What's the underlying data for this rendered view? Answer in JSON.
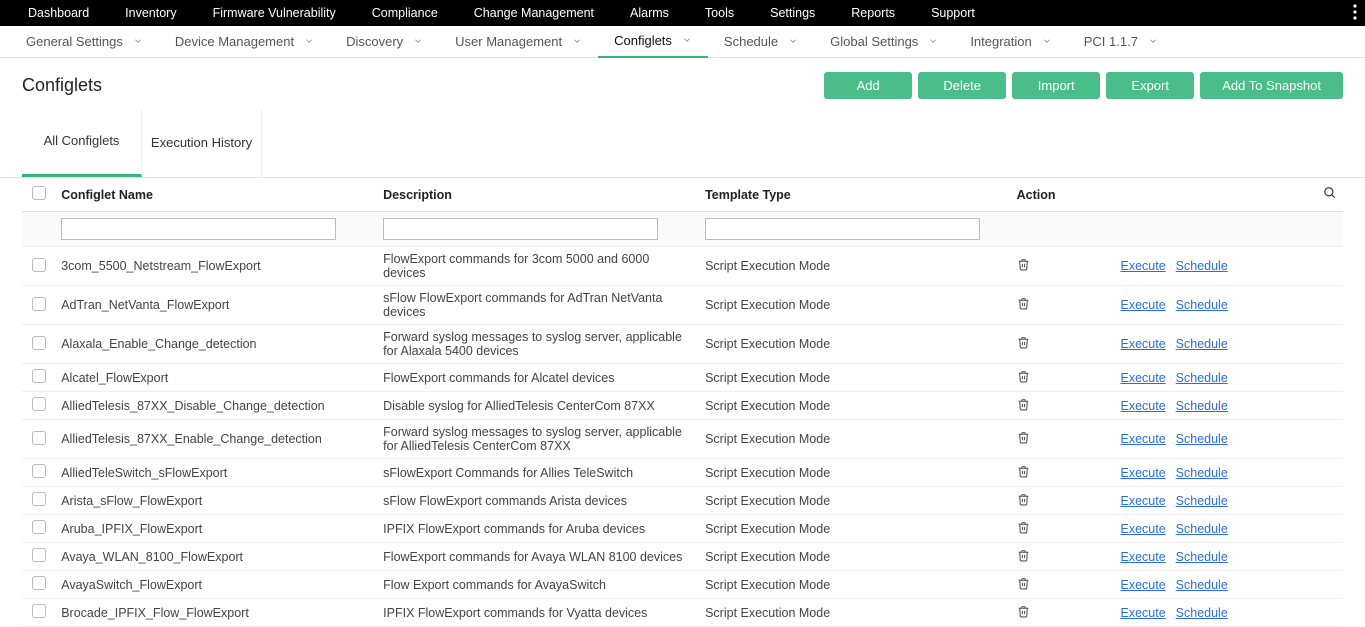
{
  "topnav": [
    "Dashboard",
    "Inventory",
    "Firmware Vulnerability",
    "Compliance",
    "Change Management",
    "Alarms",
    "Tools",
    "Settings",
    "Reports",
    "Support"
  ],
  "subnav": [
    {
      "label": "General Settings"
    },
    {
      "label": "Device Management"
    },
    {
      "label": "Discovery"
    },
    {
      "label": "User Management"
    },
    {
      "label": "Configlets",
      "active": true
    },
    {
      "label": "Schedule"
    },
    {
      "label": "Global Settings"
    },
    {
      "label": "Integration"
    },
    {
      "label": "PCI 1.1.7"
    }
  ],
  "page_title": "Configlets",
  "buttons": {
    "add": "Add",
    "delete": "Delete",
    "import": "Import",
    "export": "Export",
    "snapshot": "Add To Snapshot"
  },
  "tabs": [
    {
      "label": "All Configlets",
      "active": true
    },
    {
      "label": "Execution History",
      "active": false
    }
  ],
  "columns": {
    "name": "Configlet Name",
    "desc": "Description",
    "type": "Template Type",
    "action": "Action"
  },
  "action_links": {
    "execute": "Execute",
    "schedule": "Schedule"
  },
  "rows": [
    {
      "name": "3com_5500_Netstream_FlowExport",
      "desc": "FlowExport commands for 3com 5000 and 6000 devices",
      "type": "Script Execution Mode"
    },
    {
      "name": "AdTran_NetVanta_FlowExport",
      "desc": "sFlow FlowExport commands for AdTran NetVanta devices",
      "type": "Script Execution Mode"
    },
    {
      "name": "Alaxala_Enable_Change_detection",
      "desc": "Forward syslog messages to syslog server, applicable for Alaxala 5400 devices",
      "type": "Script Execution Mode"
    },
    {
      "name": "Alcatel_FlowExport",
      "desc": "FlowExport commands for Alcatel devices",
      "type": "Script Execution Mode"
    },
    {
      "name": "AlliedTelesis_87XX_Disable_Change_detection",
      "desc": "Disable syslog for AlliedTelesis CenterCom 87XX",
      "type": "Script Execution Mode"
    },
    {
      "name": "AlliedTelesis_87XX_Enable_Change_detection",
      "desc": "Forward syslog messages to syslog server, applicable for AlliedTelesis CenterCom 87XX",
      "type": "Script Execution Mode"
    },
    {
      "name": "AlliedTeleSwitch_sFlowExport",
      "desc": "sFlowExport Commands for Allies TeleSwitch",
      "type": "Script Execution Mode"
    },
    {
      "name": "Arista_sFlow_FlowExport",
      "desc": "sFlow FlowExport commands Arista devices",
      "type": "Script Execution Mode"
    },
    {
      "name": "Aruba_IPFIX_FlowExport",
      "desc": "IPFIX FlowExport commands for Aruba devices",
      "type": "Script Execution Mode"
    },
    {
      "name": "Avaya_WLAN_8100_FlowExport",
      "desc": "FlowExport commands for Avaya WLAN 8100 devices",
      "type": "Script Execution Mode"
    },
    {
      "name": "AvayaSwitch_FlowExport",
      "desc": "Flow Export commands for AvayaSwitch",
      "type": "Script Execution Mode"
    },
    {
      "name": "Brocade_IPFIX_Flow_FlowExport",
      "desc": "IPFIX FlowExport commands for Vyatta devices",
      "type": "Script Execution Mode"
    }
  ],
  "colors": {
    "accent": "#38b77b",
    "button": "#4bbd8a",
    "link": "#2a6fd6"
  }
}
